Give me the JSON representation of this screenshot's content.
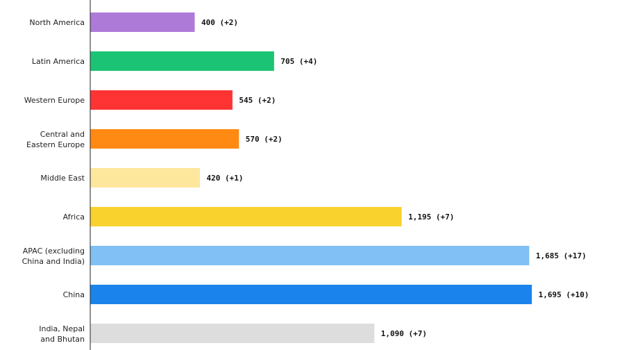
{
  "chart_data": {
    "type": "bar",
    "orientation": "horizontal",
    "categories": [
      [
        "North America"
      ],
      [
        "Latin America"
      ],
      [
        "Western Europe"
      ],
      [
        "Central and",
        "Eastern Europe"
      ],
      [
        "Middle East"
      ],
      [
        "Africa"
      ],
      [
        "APAC (excluding",
        "China and India)"
      ],
      [
        "China"
      ],
      [
        "India, Nepal",
        "and Bhutan"
      ]
    ],
    "values": [
      400,
      705,
      545,
      570,
      420,
      1195,
      1685,
      1695,
      1090
    ],
    "value_labels": [
      "400 (+2)",
      "705 (+4)",
      "545 (+2)",
      "570 (+2)",
      "420 (+1)",
      "1,195 (+7)",
      "1,685 (+17)",
      "1,695 (+10)",
      "1,090 (+7)"
    ],
    "colors": [
      "#ad7bd7",
      "#1bc474",
      "#fe3434",
      "#fe8a14",
      "#fde79d",
      "#fad22e",
      "#80c0f5",
      "#1a84ec",
      "#dddddd"
    ],
    "title": "",
    "xlabel": "",
    "ylabel": "",
    "grid": false,
    "legend": "none"
  }
}
